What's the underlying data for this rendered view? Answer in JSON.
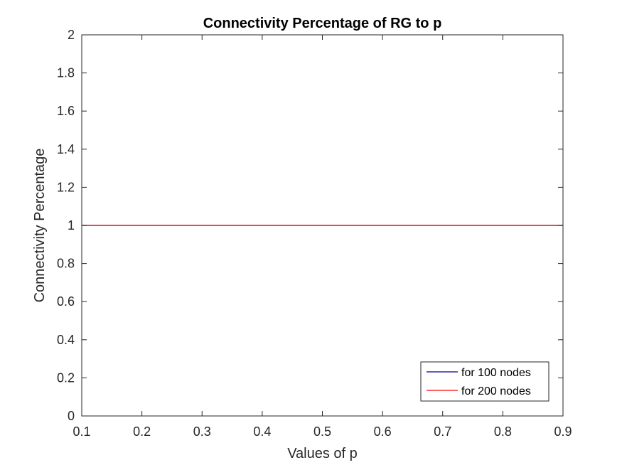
{
  "chart_data": {
    "type": "line",
    "title": "Connectivity Percentage of RG to p",
    "xlabel": "Values of p",
    "ylabel": "Connectivity Percentage",
    "xlim": [
      0.1,
      0.9
    ],
    "ylim": [
      0,
      2
    ],
    "x_ticks": [
      "0.1",
      "0.2",
      "0.3",
      "0.4",
      "0.5",
      "0.6",
      "0.7",
      "0.8",
      "0.9"
    ],
    "y_ticks": [
      "0",
      "0.2",
      "0.4",
      "0.6",
      "0.8",
      "1",
      "1.2",
      "1.4",
      "1.6",
      "1.8",
      "2"
    ],
    "grid": false,
    "legend_position": "bottom-right",
    "x": [
      0.1,
      0.2,
      0.3,
      0.4,
      0.5,
      0.6,
      0.7,
      0.8,
      0.9
    ],
    "series": [
      {
        "name": "for 100 nodes",
        "color": "#00008b",
        "values": [
          1,
          1,
          1,
          1,
          1,
          1,
          1,
          1,
          1
        ]
      },
      {
        "name": "for 200 nodes",
        "color": "#ff0000",
        "values": [
          1,
          1,
          1,
          1,
          1,
          1,
          1,
          1,
          1
        ]
      }
    ]
  }
}
